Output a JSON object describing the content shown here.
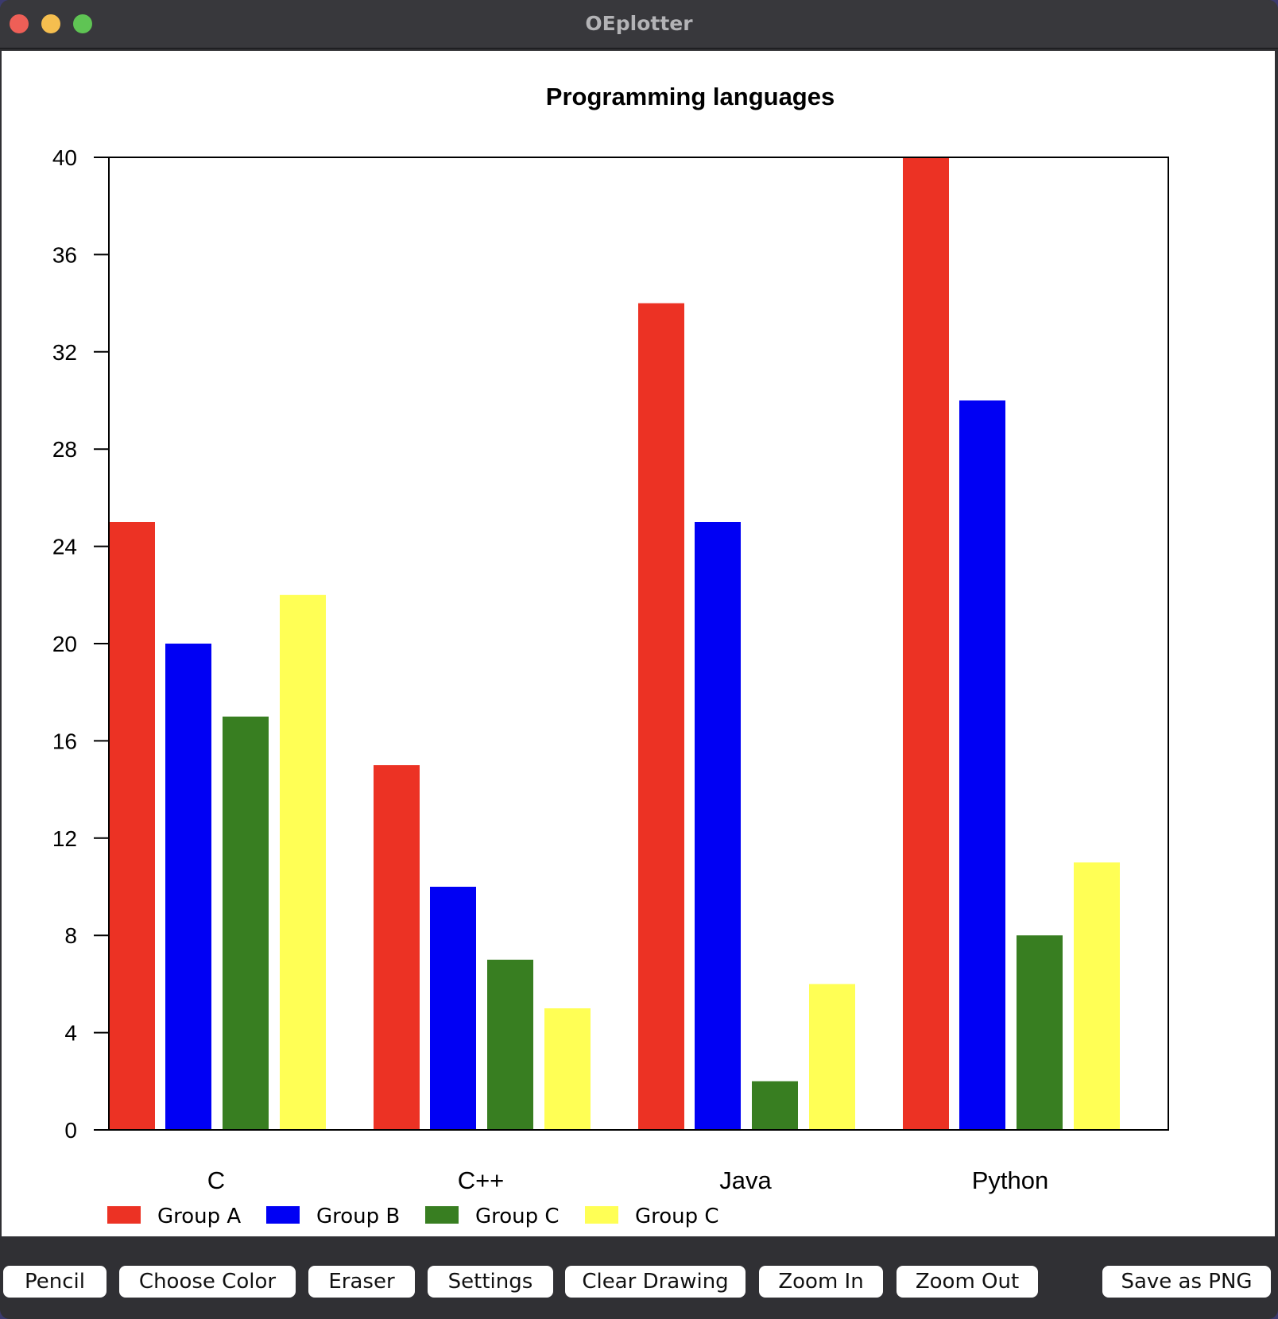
{
  "window": {
    "title": "OEplotter"
  },
  "toolbar": {
    "pencil": "Pencil",
    "choose_color": "Choose Color",
    "eraser": "Eraser",
    "settings": "Settings",
    "clear_drawing": "Clear Drawing",
    "zoom_in": "Zoom In",
    "zoom_out": "Zoom Out",
    "save_png": "Save as PNG"
  },
  "colors": {
    "group_a": "#ec3224",
    "group_b": "#0000f4",
    "group_c_green": "#387e21",
    "group_c_yellow": "#ffff55"
  },
  "chart_data": {
    "type": "bar",
    "title": "Programming languages",
    "xlabel": "",
    "ylabel": "",
    "categories": [
      "C",
      "C++",
      "Java",
      "Python"
    ],
    "series": [
      {
        "name": "Group A",
        "color": "#ec3224",
        "values": [
          25,
          15,
          34,
          40
        ]
      },
      {
        "name": "Group B",
        "color": "#0000f4",
        "values": [
          20,
          10,
          25,
          30
        ]
      },
      {
        "name": "Group C",
        "color": "#387e21",
        "values": [
          17,
          7,
          2,
          8
        ]
      },
      {
        "name": "Group C",
        "color": "#ffff55",
        "values": [
          22,
          5,
          6,
          11
        ]
      }
    ],
    "ylim": [
      0,
      40
    ],
    "yticks": [
      0,
      4,
      8,
      12,
      16,
      20,
      24,
      28,
      32,
      36,
      40
    ],
    "grid": false,
    "legend": "bottom-left"
  }
}
